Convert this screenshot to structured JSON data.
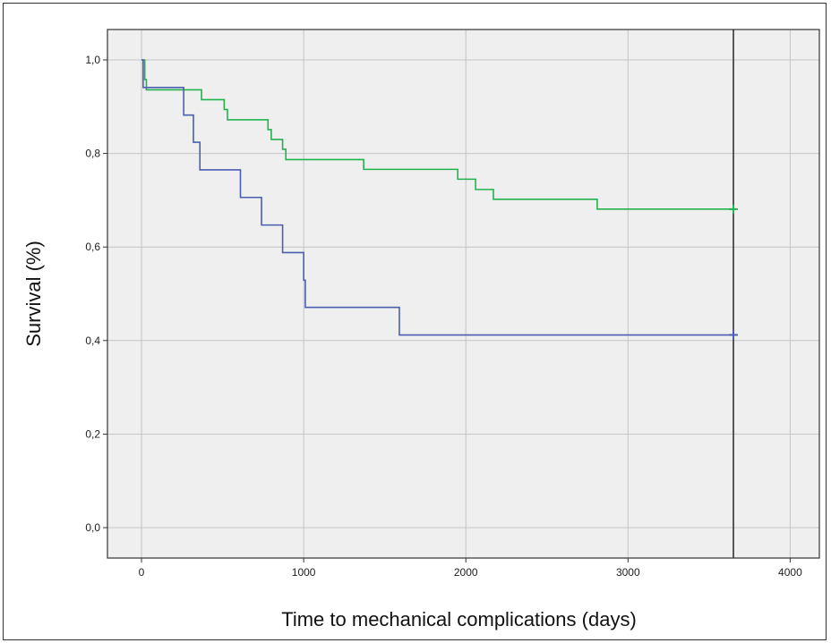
{
  "chart_data": {
    "type": "line",
    "title": "",
    "xlabel": "Time to mechanical complications (days)",
    "ylabel": "Survival (%)",
    "xlim": [
      -210,
      4180
    ],
    "ylim": [
      -0.065,
      1.065
    ],
    "x_ticks": [
      0,
      1000,
      2000,
      3000,
      4000
    ],
    "x_tick_labels": [
      "0",
      "1000",
      "2000",
      "3000",
      "4000"
    ],
    "y_ticks": [
      0.0,
      0.2,
      0.4,
      0.6,
      0.8,
      1.0
    ],
    "y_tick_labels": [
      "0,0",
      "0,2",
      "0,4",
      "0,6",
      "0,8",
      "1,0"
    ],
    "grid": true,
    "reference_line_x": 3650,
    "colors": {
      "plot_background": "#efefef",
      "grid": "#c4c4c4",
      "axis": "#333333"
    },
    "series": [
      {
        "color": "#22b24c",
        "step": true,
        "points": [
          [
            0,
            1.0
          ],
          [
            20,
            0.958
          ],
          [
            30,
            0.936
          ],
          [
            250,
            0.936
          ],
          [
            370,
            0.915
          ],
          [
            510,
            0.894
          ],
          [
            530,
            0.872
          ],
          [
            780,
            0.851
          ],
          [
            800,
            0.83
          ],
          [
            870,
            0.809
          ],
          [
            890,
            0.787
          ],
          [
            1370,
            0.766
          ],
          [
            1950,
            0.745
          ],
          [
            2060,
            0.723
          ],
          [
            2170,
            0.702
          ],
          [
            2810,
            0.681
          ],
          [
            3650,
            0.681
          ]
        ],
        "censored": [
          [
            3650,
            0.681
          ]
        ]
      },
      {
        "color": "#4a5fb0",
        "step": true,
        "points": [
          [
            0,
            1.0
          ],
          [
            10,
            0.941
          ],
          [
            250,
            0.941
          ],
          [
            260,
            0.882
          ],
          [
            320,
            0.824
          ],
          [
            360,
            0.765
          ],
          [
            610,
            0.706
          ],
          [
            740,
            0.647
          ],
          [
            870,
            0.588
          ],
          [
            1000,
            0.529
          ],
          [
            1010,
            0.471
          ],
          [
            1590,
            0.412
          ],
          [
            3650,
            0.412
          ]
        ],
        "censored": [
          [
            3650,
            0.412
          ]
        ]
      }
    ]
  }
}
